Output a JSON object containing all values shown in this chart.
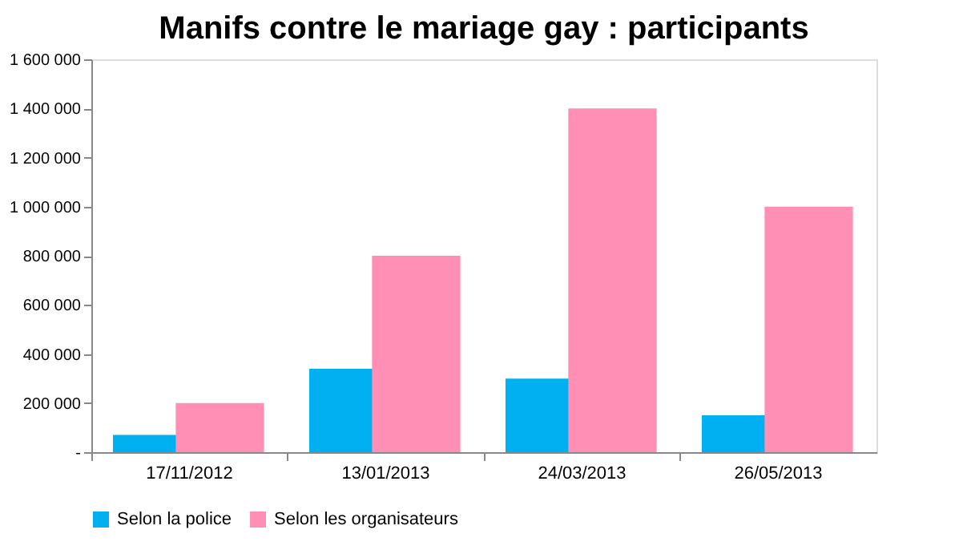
{
  "chart_data": {
    "type": "bar",
    "title": "Manifs contre le mariage gay : participants",
    "categories": [
      "17/11/2012",
      "13/01/2013",
      "24/03/2013",
      "26/05/2013"
    ],
    "series": [
      {
        "name": "Selon la police",
        "color": "#00b0f0",
        "values": [
          70000,
          340000,
          300000,
          150000
        ]
      },
      {
        "name": "Selon les organisateurs",
        "color": "#ff8fb5",
        "values": [
          200000,
          800000,
          1400000,
          1000000
        ]
      }
    ],
    "ylim": [
      0,
      1600000
    ],
    "yticks": [
      {
        "value": 0,
        "label": "-"
      },
      {
        "value": 200000,
        "label": "200 000"
      },
      {
        "value": 400000,
        "label": "400 000"
      },
      {
        "value": 600000,
        "label": "600 000"
      },
      {
        "value": 800000,
        "label": "800 000"
      },
      {
        "value": 1000000,
        "label": "1 000 000"
      },
      {
        "value": 1200000,
        "label": "1 200 000"
      },
      {
        "value": 1400000,
        "label": "1 400 000"
      },
      {
        "value": 1600000,
        "label": "1 600 000"
      }
    ],
    "grid": false,
    "legend": "bottom"
  }
}
